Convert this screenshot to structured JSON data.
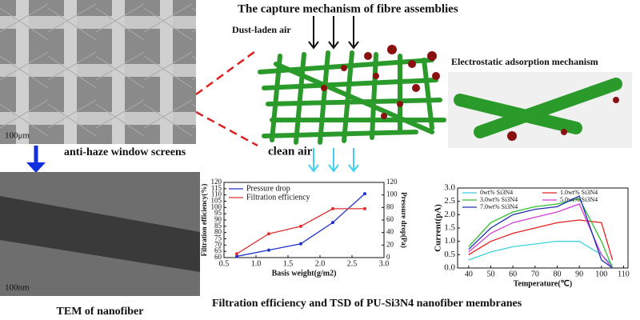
{
  "header": {
    "title": "The capture mechanism of fibre assemblies"
  },
  "labels": {
    "dust": "Dust-laden air",
    "clean": "clean air",
    "electrostatic": "Electrostatic adsorption mechanism",
    "screens": "anti-haze window screens",
    "sem_scale": "100μm",
    "tem_scale": "100nm",
    "tem_caption": "TEM of nanofiber",
    "bottom_caption": "Filtration efficiency and TSD of PU-Si3N4 nanofiber membranes"
  },
  "chart_data": [
    {
      "type": "line",
      "x_label": "Basis weight(g/m2)",
      "y_label": "Filtration efficiency(%)",
      "y2_label": "Pressure drop(Pa)",
      "x": [
        0.7,
        1.2,
        1.7,
        2.2,
        2.7
      ],
      "series": [
        {
          "name": "Pressure drop",
          "color": "#2233cc",
          "values": [
            2,
            12,
            22,
            56,
            102
          ],
          "axis": "y2"
        },
        {
          "name": "Filtration efficiency",
          "color": "#e03030",
          "values": [
            63,
            79,
            85,
            99,
            99
          ]
        }
      ],
      "xlim": [
        0.5,
        3.0
      ],
      "xticks": [
        0.5,
        {
          "value": 1,
          "label": "1.0"
        },
        1.5,
        {
          "value": 2,
          "label": "2.0"
        },
        2.5,
        {
          "value": 3,
          "label": "3.0"
        }
      ],
      "ylim": [
        60,
        120
      ],
      "yticks": [
        60,
        65,
        70,
        75,
        80,
        85,
        90,
        95,
        100,
        105,
        110,
        115,
        120
      ],
      "y2lim": [
        0,
        120
      ],
      "y2ticks": [
        0,
        20,
        40,
        60,
        80,
        100,
        120
      ]
    },
    {
      "type": "line",
      "x_label": "Temperature(℃)",
      "y_label": "Current(pA)",
      "x": [
        40,
        50,
        60,
        70,
        80,
        90,
        100,
        105
      ],
      "series": [
        {
          "name": "0wt% Si3N4",
          "color": "#40d0e0",
          "values": [
            0.3,
            0.6,
            0.8,
            0.9,
            1.0,
            1.0,
            0.5,
            0.1
          ]
        },
        {
          "name": "1.0wt% Si3N4",
          "color": "#e02020",
          "values": [
            0.5,
            1.0,
            1.3,
            1.5,
            1.7,
            1.8,
            1.7,
            0.3
          ]
        },
        {
          "name": "3.0wt% Si3N4",
          "color": "#30c030",
          "values": [
            0.8,
            1.7,
            2.1,
            2.3,
            2.4,
            2.6,
            1.0,
            0
          ]
        },
        {
          "name": "5.0wt% Si3N4",
          "color": "#d040d0",
          "values": [
            0.6,
            1.3,
            1.7,
            1.9,
            2.1,
            2.4,
            0.5,
            0
          ]
        },
        {
          "name": "7.0wt% Si3N4",
          "color": "#2030b0",
          "values": [
            0.7,
            1.5,
            2.0,
            2.2,
            2.3,
            2.7,
            0.3,
            0
          ]
        }
      ],
      "xlim": [
        35,
        112
      ],
      "xticks": [
        40,
        50,
        60,
        70,
        80,
        90,
        100,
        110
      ],
      "ylim": [
        0,
        3
      ],
      "yticks": [
        {
          "value": 0,
          "label": "0.0"
        },
        0.5,
        {
          "value": 1,
          "label": "1.0"
        },
        1.5,
        {
          "value": 2,
          "label": "2.0"
        },
        2.5,
        {
          "value": 3,
          "label": "3.0"
        }
      ]
    }
  ]
}
